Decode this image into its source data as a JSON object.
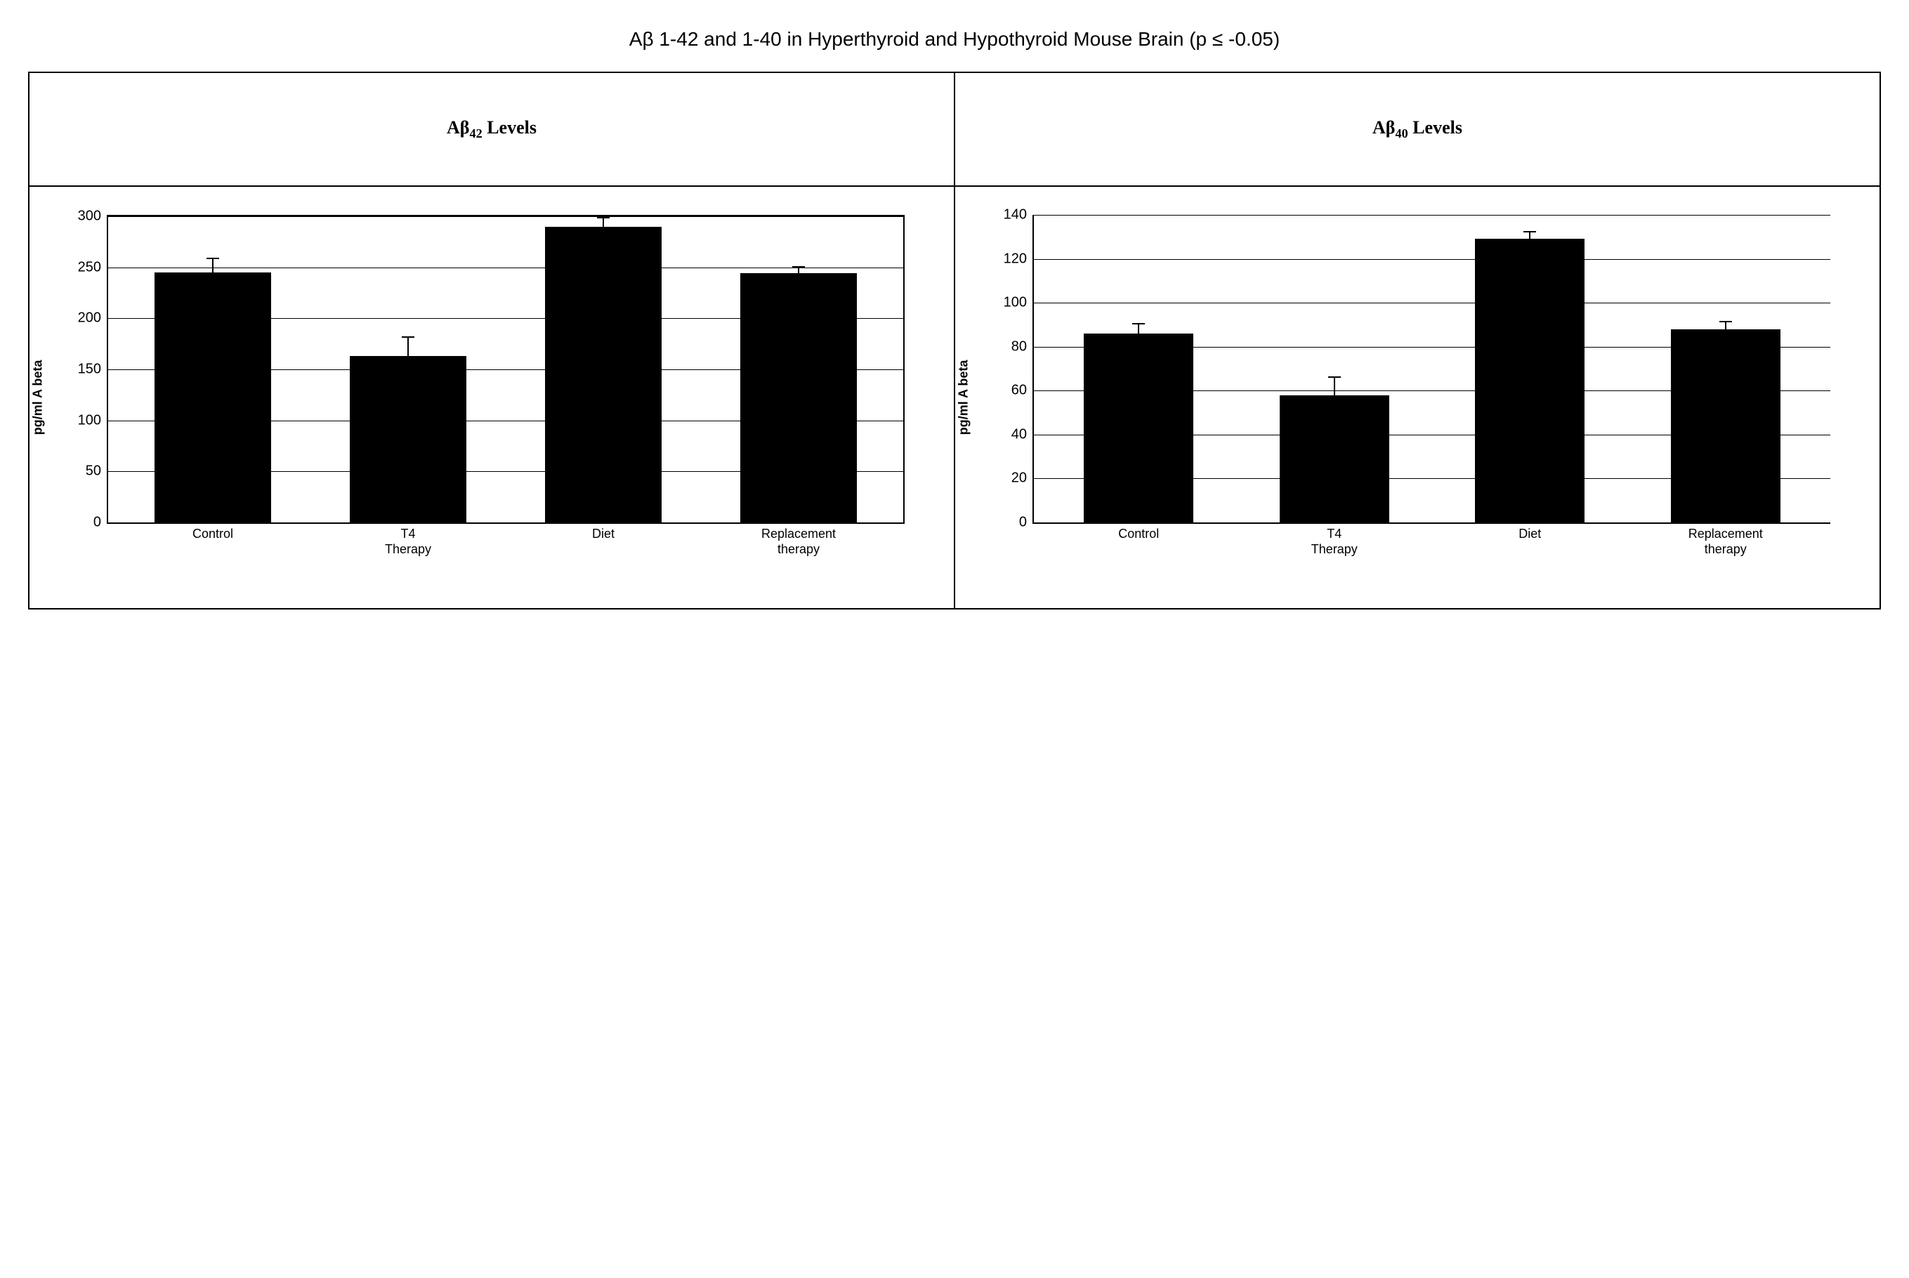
{
  "title_prefix": "Aβ",
  "title_rest": "  1-42 and 1-40 in Hyperthyroid and Hypothyroid Mouse Brain (p ≤ -0.05)",
  "background_color": "#ffffff",
  "border_color": "#000000",
  "grid_color": "#000000",
  "bar_color": "#000000",
  "text_color": "#000000",
  "panels": [
    {
      "header_prefix": "Aβ",
      "header_sub": "42",
      "header_suffix": " Levels",
      "type": "bar",
      "ylabel": "pg/ml A beta",
      "ylim": [
        0,
        300
      ],
      "ytick_step": 50,
      "yticks": [
        0,
        50,
        100,
        150,
        200,
        250,
        300
      ],
      "frame_boxed": true,
      "bar_width_pct": 60,
      "categories": [
        "Control",
        "T4\nTherapy",
        "Diet",
        "Replacement\ntherapy"
      ],
      "values": [
        245,
        163,
        290,
        244
      ],
      "errors": [
        13,
        18,
        8,
        6
      ]
    },
    {
      "header_prefix": "Aβ",
      "header_sub": "40",
      "header_suffix": " Levels",
      "type": "bar",
      "ylabel": "pg/ml A beta",
      "ylim": [
        0,
        140
      ],
      "ytick_step": 20,
      "yticks": [
        0,
        20,
        40,
        60,
        80,
        100,
        120,
        140
      ],
      "frame_boxed": false,
      "bar_width_pct": 56,
      "categories": [
        "Control",
        "T4\nTherapy",
        "Diet",
        "Replacement\ntherapy"
      ],
      "values": [
        86,
        58,
        129,
        88
      ],
      "errors": [
        4,
        8,
        3,
        3
      ]
    }
  ]
}
